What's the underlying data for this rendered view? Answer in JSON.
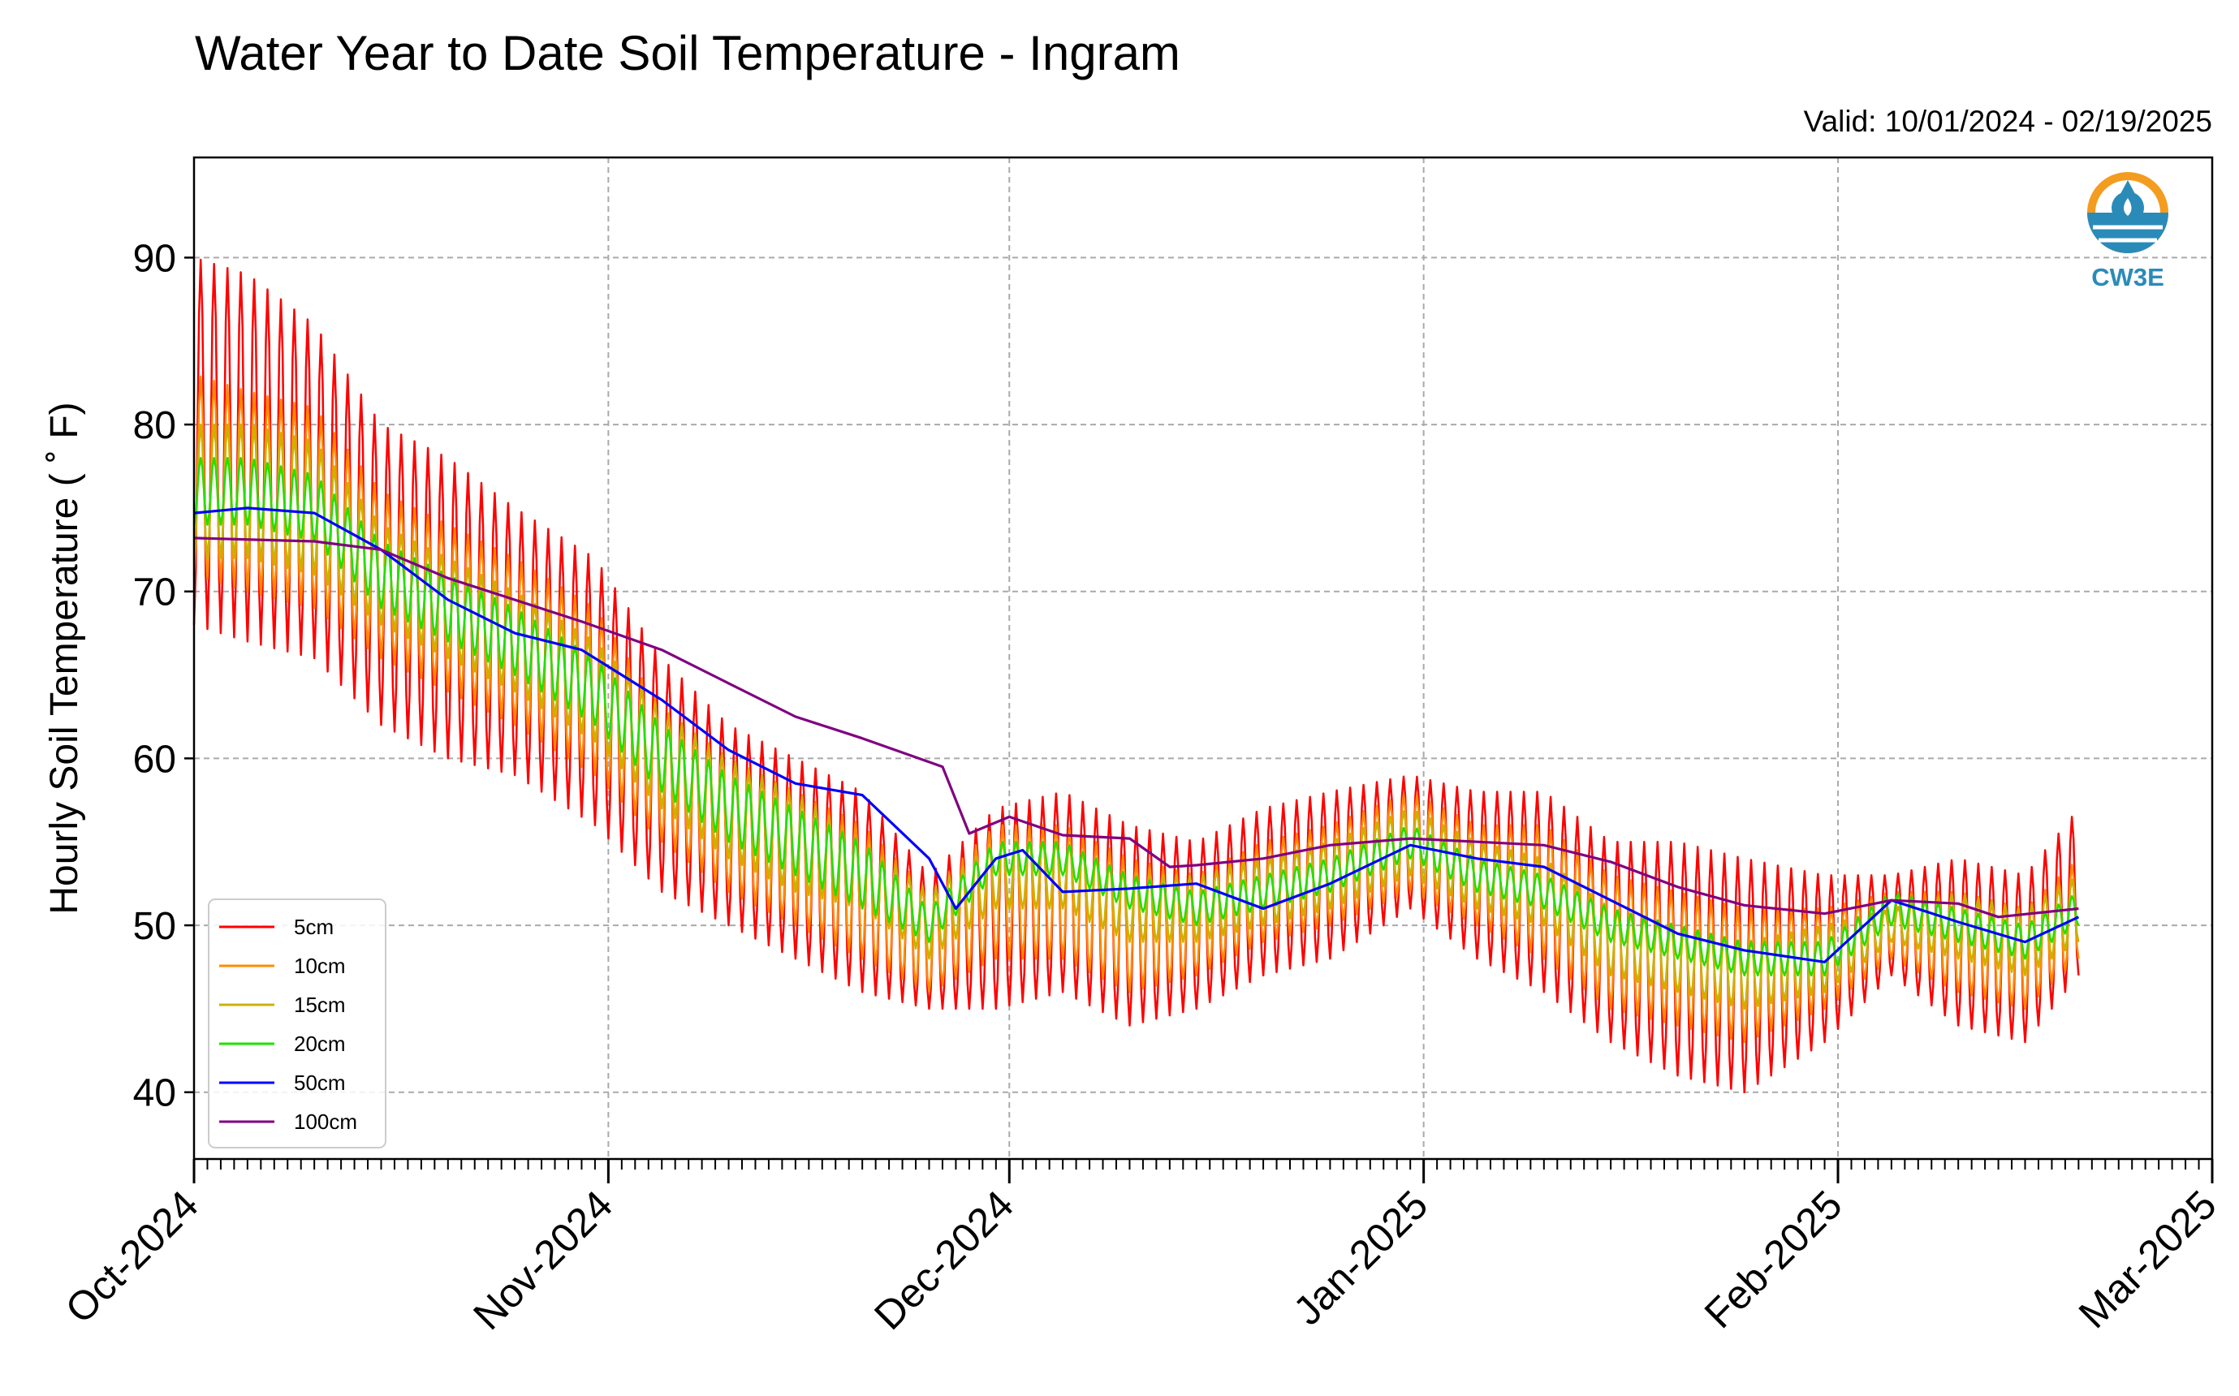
{
  "logo": {
    "text": "CW3E",
    "color": "#2a8bb8",
    "accent": "#f39c1f"
  },
  "chart_data": {
    "type": "line",
    "title": "Water Year to Date Soil Temperature - Ingram",
    "subtitle": "Valid: 10/01/2024 - 02/19/2025",
    "xlabel": "",
    "ylabel": "Hourly Soil Temperature ( ˚ F)",
    "ylim": [
      36,
      96
    ],
    "xlim": [
      "2024-10-01",
      "2025-03-01"
    ],
    "grid": true,
    "legend_position": "lower-left",
    "y_ticks": [
      40,
      50,
      60,
      70,
      80,
      90
    ],
    "x_ticks": [
      {
        "date": "2024-10-01",
        "label": "Oct-2024"
      },
      {
        "date": "2024-11-01",
        "label": "Nov-2024"
      },
      {
        "date": "2024-12-01",
        "label": "Dec-2024"
      },
      {
        "date": "2025-01-01",
        "label": "Jan-2025"
      },
      {
        "date": "2025-02-01",
        "label": "Feb-2025"
      },
      {
        "date": "2025-03-01",
        "label": "Mar-2025"
      }
    ],
    "series": [
      {
        "name": "5cm",
        "color": "#ff0000",
        "x": [
          "2024-10-01",
          "2024-10-05",
          "2024-10-10",
          "2024-10-15",
          "2024-10-20",
          "2024-10-25",
          "2024-10-31",
          "2024-11-05",
          "2024-11-10",
          "2024-11-15",
          "2024-11-20",
          "2024-11-25",
          "2024-11-30",
          "2024-12-05",
          "2024-12-10",
          "2024-12-15",
          "2024-12-20",
          "2024-12-25",
          "2024-12-31",
          "2025-01-05",
          "2025-01-10",
          "2025-01-15",
          "2025-01-20",
          "2025-01-25",
          "2025-01-31",
          "2025-02-05",
          "2025-02-10",
          "2025-02-15",
          "2025-02-19"
        ],
        "mean": [
          79,
          78,
          76,
          71,
          69,
          67,
          64,
          59,
          56,
          54,
          52,
          49,
          51,
          52,
          50,
          50,
          52,
          53,
          55,
          53,
          52,
          49,
          48,
          47,
          48,
          50,
          49,
          48,
          52
        ],
        "amp": [
          11,
          11,
          10,
          9,
          9,
          8,
          8,
          7,
          6,
          6,
          6,
          4,
          6,
          6,
          6,
          5,
          5,
          5,
          4,
          5,
          6,
          6,
          7,
          7,
          5,
          3,
          5,
          5,
          5
        ]
      },
      {
        "name": "10cm",
        "color": "#ff8c00",
        "x": [
          "2024-10-01",
          "2024-10-05",
          "2024-10-10",
          "2024-10-15",
          "2024-10-20",
          "2024-10-25",
          "2024-10-31",
          "2024-11-05",
          "2024-11-10",
          "2024-11-15",
          "2024-11-20",
          "2024-11-25",
          "2024-11-30",
          "2024-12-05",
          "2024-12-10",
          "2024-12-15",
          "2024-12-20",
          "2024-12-25",
          "2024-12-31",
          "2025-01-05",
          "2025-01-10",
          "2025-01-15",
          "2025-01-20",
          "2025-01-25",
          "2025-01-31",
          "2025-02-05",
          "2025-02-10",
          "2025-02-15",
          "2025-02-19"
        ],
        "mean": [
          77,
          76,
          75,
          71,
          69,
          67,
          64,
          59,
          56,
          54,
          52,
          49,
          52,
          52,
          50,
          50,
          52,
          53,
          55,
          53,
          52,
          49,
          48,
          47,
          48,
          50,
          49,
          48,
          51
        ],
        "amp": [
          6,
          6,
          6,
          5,
          5,
          5,
          5,
          4,
          4,
          4,
          4,
          3,
          4,
          4,
          4,
          3,
          3,
          3,
          3,
          3,
          4,
          4,
          4,
          4,
          3,
          2,
          3,
          3,
          3
        ]
      },
      {
        "name": "15cm",
        "color": "#c8b400",
        "x": [
          "2024-10-01",
          "2024-10-05",
          "2024-10-10",
          "2024-10-15",
          "2024-10-20",
          "2024-10-25",
          "2024-10-31",
          "2024-11-05",
          "2024-11-10",
          "2024-11-15",
          "2024-11-20",
          "2024-11-25",
          "2024-11-30",
          "2024-12-05",
          "2024-12-10",
          "2024-12-15",
          "2024-12-20",
          "2024-12-25",
          "2024-12-31",
          "2025-01-05",
          "2025-01-10",
          "2025-01-15",
          "2025-01-20",
          "2025-01-25",
          "2025-01-31",
          "2025-02-05",
          "2025-02-10",
          "2025-02-15",
          "2025-02-19"
        ],
        "mean": [
          76,
          76,
          75,
          71,
          69,
          67,
          64,
          60,
          57,
          55,
          53,
          50,
          53,
          53,
          51,
          51,
          52,
          53,
          55,
          53,
          52,
          49,
          48,
          47,
          48,
          50,
          50,
          49,
          51
        ],
        "amp": [
          4,
          4,
          4,
          3,
          3,
          3,
          3,
          3,
          3,
          3,
          2,
          2,
          2,
          2,
          2,
          2,
          2,
          2,
          2,
          2,
          2,
          2,
          2,
          2,
          2,
          1,
          2,
          2,
          2
        ]
      },
      {
        "name": "20cm",
        "color": "#22e000",
        "x": [
          "2024-10-01",
          "2024-10-05",
          "2024-10-10",
          "2024-10-15",
          "2024-10-20",
          "2024-10-25",
          "2024-10-31",
          "2024-11-05",
          "2024-11-10",
          "2024-11-15",
          "2024-11-20",
          "2024-11-25",
          "2024-11-30",
          "2024-12-05",
          "2024-12-10",
          "2024-12-15",
          "2024-12-20",
          "2024-12-25",
          "2024-12-31",
          "2025-01-05",
          "2025-01-10",
          "2025-01-15",
          "2025-01-20",
          "2025-01-25",
          "2025-01-31",
          "2025-02-05",
          "2025-02-10",
          "2025-02-15",
          "2025-02-19"
        ],
        "mean": [
          76,
          76,
          75,
          71,
          69,
          67,
          64,
          60,
          57,
          55,
          53,
          50,
          54,
          54,
          52,
          51,
          52,
          53,
          55,
          53,
          52,
          50,
          49,
          48,
          48,
          51,
          50,
          49,
          51
        ],
        "amp": [
          2,
          2,
          2,
          2,
          2,
          2,
          2,
          2,
          2,
          2,
          2,
          1,
          1,
          1,
          1,
          1,
          1,
          1,
          1,
          1,
          1,
          1,
          1,
          1,
          1,
          1,
          1,
          1,
          1
        ]
      },
      {
        "name": "50cm",
        "color": "#0000ff",
        "x": [
          "2024-10-01",
          "2024-10-05",
          "2024-10-10",
          "2024-10-15",
          "2024-10-20",
          "2024-10-25",
          "2024-10-30",
          "2024-11-05",
          "2024-11-10",
          "2024-11-15",
          "2024-11-20",
          "2024-11-25",
          "2024-11-27",
          "2024-11-30",
          "2024-12-02",
          "2024-12-05",
          "2024-12-10",
          "2024-12-15",
          "2024-12-20",
          "2024-12-25",
          "2024-12-31",
          "2025-01-05",
          "2025-01-10",
          "2025-01-15",
          "2025-01-20",
          "2025-01-25",
          "2025-01-31",
          "2025-02-05",
          "2025-02-10",
          "2025-02-15",
          "2025-02-19"
        ],
        "y": [
          74.7,
          75.0,
          74.7,
          72.5,
          69.5,
          67.5,
          66.5,
          63.5,
          60.5,
          58.5,
          57.8,
          54.0,
          51.0,
          54.0,
          54.5,
          52.0,
          52.2,
          52.5,
          51.0,
          52.5,
          54.8,
          54.0,
          53.5,
          51.5,
          49.5,
          48.5,
          47.8,
          51.5,
          50.2,
          49.0,
          50.5
        ]
      },
      {
        "name": "100cm",
        "color": "#800080",
        "x": [
          "2024-10-01",
          "2024-10-10",
          "2024-10-15",
          "2024-10-20",
          "2024-10-25",
          "2024-10-30",
          "2024-11-05",
          "2024-11-10",
          "2024-11-15",
          "2024-11-20",
          "2024-11-26",
          "2024-11-28",
          "2024-12-01",
          "2024-12-05",
          "2024-12-10",
          "2024-12-13",
          "2024-12-15",
          "2024-12-20",
          "2024-12-25",
          "2024-12-31",
          "2025-01-05",
          "2025-01-10",
          "2025-01-15",
          "2025-01-20",
          "2025-01-25",
          "2025-01-31",
          "2025-02-05",
          "2025-02-10",
          "2025-02-13",
          "2025-02-19"
        ],
        "y": [
          73.2,
          73.0,
          72.5,
          70.8,
          69.5,
          68.2,
          66.5,
          64.5,
          62.5,
          61.2,
          59.5,
          55.5,
          56.5,
          55.4,
          55.2,
          53.5,
          53.6,
          54.0,
          54.8,
          55.2,
          55.0,
          54.8,
          53.8,
          52.3,
          51.2,
          50.7,
          51.5,
          51.3,
          50.5,
          51.0
        ]
      }
    ]
  }
}
